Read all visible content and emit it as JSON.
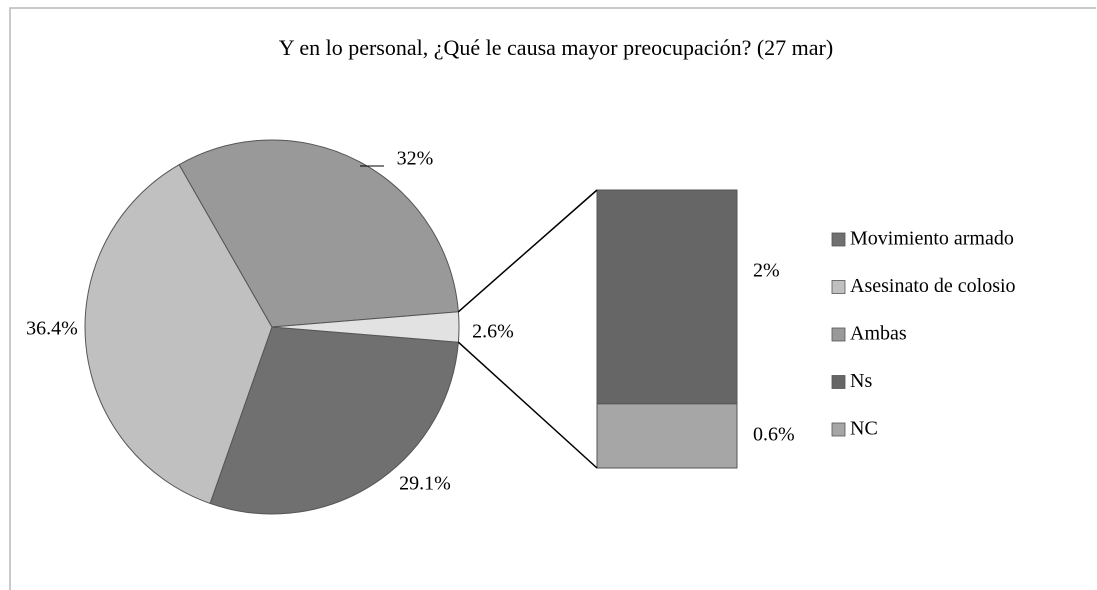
{
  "chart_data": {
    "type": "pie-of-bar",
    "title": "Y en lo personal, ¿Qué le causa mayor preocupación? (27 mar)",
    "categories": [
      "Movimiento armado",
      "Asesinato de colosio",
      "Ambas",
      null
    ],
    "values": [
      29.1,
      36.4,
      32,
      2.6
    ],
    "value_labels": [
      "29.1%",
      "36.4%",
      "32%",
      "2.6%"
    ],
    "colors": [
      "#707070",
      "#c0c0c0",
      "#999999",
      "#e2e2e2"
    ],
    "bar": {
      "categories": [
        "Ns",
        "NC"
      ],
      "values": [
        2,
        0.6
      ],
      "value_labels": [
        "2%",
        "0.6%"
      ],
      "colors": [
        "#666666",
        "#a6a6a6"
      ]
    }
  }
}
